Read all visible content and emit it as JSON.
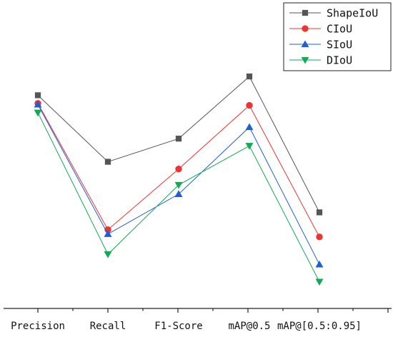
{
  "chart_data": {
    "type": "line",
    "title": "",
    "xlabel": "",
    "ylabel": "",
    "categories": [
      "Precision",
      "Recall",
      "F1-Score",
      "mAP@0.5",
      "mAP@[0.5:0.95]"
    ],
    "ylim": [
      0,
      100
    ],
    "y_axis_visible": false,
    "grid": false,
    "legend_position": "top-right",
    "series": [
      {
        "name": "ShapeIoU",
        "color": "#555555",
        "marker": "square",
        "values": [
          72.0,
          49.0,
          57.0,
          78.5,
          31.5
        ]
      },
      {
        "name": "CIoU",
        "color": "#ee3333",
        "marker": "circle",
        "values": [
          69.2,
          25.5,
          46.5,
          68.5,
          23.0
        ]
      },
      {
        "name": "SIoU",
        "color": "#1e5fd8",
        "marker": "triangle-up",
        "values": [
          68.8,
          24.0,
          37.8,
          61.0,
          13.5
        ]
      },
      {
        "name": "DIoU",
        "color": "#11aa55",
        "marker": "triangle-down",
        "values": [
          66.0,
          17.0,
          41.0,
          54.5,
          7.5
        ]
      }
    ]
  }
}
